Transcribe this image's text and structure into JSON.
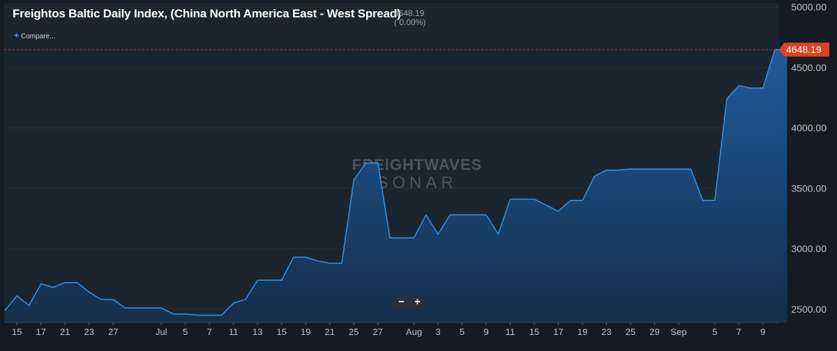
{
  "header": {
    "title": "Freightos Baltic Daily Index, (China North America East - West Spread)",
    "value_line": "4648.19",
    "change_line": "( 0.00%)",
    "compare_label": "Compare..."
  },
  "watermark": {
    "line1": "FREIGHTWAVES",
    "line2": "SONAR"
  },
  "zoom": {
    "minus": "−",
    "plus": "+"
  },
  "colors": {
    "background": "#141b24",
    "plot_bg": "#1b2530",
    "line": "#2f8fe8",
    "area_top": "#1f5ea3",
    "current_badge": "#d94321"
  },
  "chart_data": {
    "type": "area",
    "current_value_label": "4648.19",
    "y_ticks": [
      "2500.00",
      "3000.00",
      "3500.00",
      "4000.00",
      "4500.00",
      "5000.00"
    ],
    "ylim": [
      2390,
      5030
    ],
    "grid": true,
    "x_ticks": [
      {
        "label": "15",
        "i": 1
      },
      {
        "label": "17",
        "i": 3
      },
      {
        "label": "21",
        "i": 5
      },
      {
        "label": "23",
        "i": 7
      },
      {
        "label": "27",
        "i": 9
      },
      {
        "label": "Jul",
        "i": 13
      },
      {
        "label": "5",
        "i": 15
      },
      {
        "label": "7",
        "i": 17
      },
      {
        "label": "11",
        "i": 19
      },
      {
        "label": "13",
        "i": 21
      },
      {
        "label": "15",
        "i": 23
      },
      {
        "label": "19",
        "i": 25
      },
      {
        "label": "21",
        "i": 27
      },
      {
        "label": "25",
        "i": 29
      },
      {
        "label": "27",
        "i": 31
      },
      {
        "label": "Aug",
        "i": 34
      },
      {
        "label": "3",
        "i": 36
      },
      {
        "label": "5",
        "i": 38
      },
      {
        "label": "9",
        "i": 40
      },
      {
        "label": "11",
        "i": 42
      },
      {
        "label": "15",
        "i": 44
      },
      {
        "label": "17",
        "i": 46
      },
      {
        "label": "19",
        "i": 48
      },
      {
        "label": "23",
        "i": 50
      },
      {
        "label": "25",
        "i": 52
      },
      {
        "label": "29",
        "i": 54
      },
      {
        "label": "Sep",
        "i": 56
      },
      {
        "label": "5",
        "i": 59
      },
      {
        "label": "7",
        "i": 61
      },
      {
        "label": "9",
        "i": 63
      }
    ],
    "values": [
      2490,
      2610,
      2530,
      2710,
      2680,
      2720,
      2720,
      2640,
      2580,
      2580,
      2510,
      2510,
      2510,
      2510,
      2460,
      2460,
      2450,
      2450,
      2450,
      2550,
      2580,
      2740,
      2740,
      2740,
      2930,
      2930,
      2900,
      2880,
      2880,
      3570,
      3710,
      3710,
      3090,
      3090,
      3090,
      3280,
      3120,
      3280,
      3280,
      3280,
      3280,
      3120,
      3410,
      3410,
      3410,
      3360,
      3310,
      3400,
      3400,
      3600,
      3650,
      3650,
      3660,
      3660,
      3660,
      3660,
      3660,
      3660,
      3400,
      3400,
      4240,
      4350,
      4330,
      4330,
      4648.19,
      4648.19
    ]
  }
}
